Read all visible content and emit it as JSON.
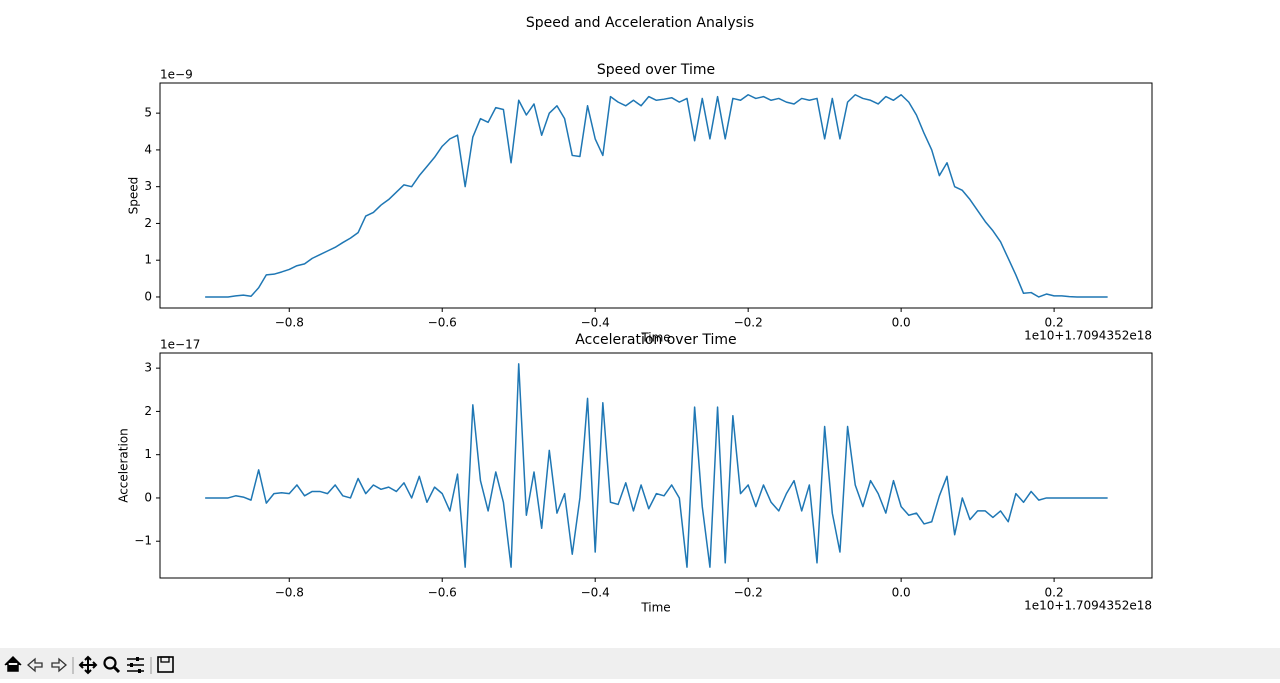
{
  "title": "Speed and Acceleration Analysis",
  "chart_data": [
    {
      "type": "line",
      "title": "Speed over Time",
      "x_label": "Time",
      "y_label": "Speed",
      "y_offset": "1e−9",
      "x_offset": "1e10+1.7094352e18",
      "color": "#1f77b4",
      "xlim": [
        -0.969,
        0.328
      ],
      "ylim": [
        -0.3,
        5.82
      ],
      "xticks": [
        {
          "value": -0.8,
          "label": "−0.8"
        },
        {
          "value": -0.6,
          "label": "−0.6"
        },
        {
          "value": -0.4,
          "label": "−0.4"
        },
        {
          "value": -0.2,
          "label": "−0.2"
        },
        {
          "value": 0,
          "label": "0.0"
        },
        0.2
      ],
      "yticks": [
        0,
        1,
        2,
        3,
        4,
        5
      ],
      "x": [
        -0.91,
        -0.9,
        -0.89,
        -0.88,
        -0.87,
        -0.86,
        -0.85,
        -0.84,
        -0.83,
        -0.82,
        -0.81,
        -0.8,
        -0.79,
        -0.78,
        -0.77,
        -0.76,
        -0.75,
        -0.74,
        -0.73,
        -0.72,
        -0.71,
        -0.7,
        -0.69,
        -0.68,
        -0.67,
        -0.66,
        -0.65,
        -0.64,
        -0.63,
        -0.62,
        -0.61,
        -0.6,
        -0.59,
        -0.58,
        -0.57,
        -0.56,
        -0.55,
        -0.54,
        -0.53,
        -0.52,
        -0.51,
        -0.5,
        -0.49,
        -0.48,
        -0.47,
        -0.46,
        -0.45,
        -0.44,
        -0.43,
        -0.42,
        -0.41,
        -0.4,
        -0.39,
        -0.38,
        -0.37,
        -0.36,
        -0.35,
        -0.34,
        -0.33,
        -0.32,
        -0.31,
        -0.3,
        -0.29,
        -0.28,
        -0.27,
        -0.26,
        -0.25,
        -0.24,
        -0.23,
        -0.22,
        -0.21,
        -0.2,
        -0.19,
        -0.18,
        -0.17,
        -0.16,
        -0.15,
        -0.14,
        -0.13,
        -0.12,
        -0.11,
        -0.1,
        -0.09,
        -0.08,
        -0.07,
        -0.06,
        -0.05,
        -0.04,
        -0.03,
        -0.02,
        -0.01,
        0,
        0.01,
        0.02,
        0.03,
        0.04,
        0.05,
        0.06,
        0.07,
        0.08,
        0.09,
        0.1,
        0.11,
        0.12,
        0.13,
        0.14,
        0.15,
        0.16,
        0.17,
        0.18,
        0.19,
        0.2,
        0.21,
        0.22,
        0.23,
        0.24,
        0.25,
        0.26,
        0.27
      ],
      "values": [
        0,
        0,
        0,
        0,
        0.03,
        0.05,
        0.02,
        0.25,
        0.6,
        0.62,
        0.68,
        0.75,
        0.85,
        0.9,
        1.05,
        1.15,
        1.25,
        1.35,
        1.48,
        1.6,
        1.75,
        2.2,
        2.3,
        2.5,
        2.65,
        2.85,
        3.05,
        3.0,
        3.3,
        3.55,
        3.8,
        4.1,
        4.3,
        4.4,
        3.0,
        4.35,
        4.85,
        4.75,
        5.15,
        5.1,
        3.65,
        5.35,
        4.95,
        5.25,
        4.4,
        5.0,
        5.2,
        4.85,
        3.85,
        3.82,
        5.2,
        4.3,
        3.85,
        5.45,
        5.3,
        5.2,
        5.35,
        5.2,
        5.45,
        5.35,
        5.38,
        5.42,
        5.3,
        5.4,
        4.25,
        5.4,
        4.3,
        5.45,
        4.3,
        5.4,
        5.35,
        5.5,
        5.4,
        5.45,
        5.35,
        5.4,
        5.3,
        5.25,
        5.4,
        5.35,
        5.4,
        4.3,
        5.4,
        4.3,
        5.3,
        5.5,
        5.4,
        5.35,
        5.25,
        5.45,
        5.35,
        5.5,
        5.3,
        4.95,
        4.45,
        4.0,
        3.3,
        3.65,
        3.0,
        2.9,
        2.65,
        2.35,
        2.05,
        1.8,
        1.5,
        1.05,
        0.6,
        0.1,
        0.12,
        0.0,
        0.08,
        0.03,
        0.03,
        0.01,
        0,
        0,
        0,
        0,
        0
      ]
    },
    {
      "type": "line",
      "title": "Acceleration over Time",
      "x_label": "Time",
      "y_label": "Acceleration",
      "y_offset": "1e−17",
      "x_offset": "1e10+1.7094352e18",
      "color": "#1f77b4",
      "xlim": [
        -0.969,
        0.328
      ],
      "ylim": [
        -1.85,
        3.35
      ],
      "xticks": [
        {
          "value": -0.8,
          "label": "−0.8"
        },
        {
          "value": -0.6,
          "label": "−0.6"
        },
        {
          "value": -0.4,
          "label": "−0.4"
        },
        {
          "value": -0.2,
          "label": "−0.2"
        },
        {
          "value": 0,
          "label": "0.0"
        },
        0.2
      ],
      "yticks": [
        {
          "value": -1,
          "label": "−1"
        },
        0,
        1,
        2,
        3
      ],
      "x": [
        -0.91,
        -0.9,
        -0.89,
        -0.88,
        -0.87,
        -0.86,
        -0.85,
        -0.84,
        -0.83,
        -0.82,
        -0.81,
        -0.8,
        -0.79,
        -0.78,
        -0.77,
        -0.76,
        -0.75,
        -0.74,
        -0.73,
        -0.72,
        -0.71,
        -0.7,
        -0.69,
        -0.68,
        -0.67,
        -0.66,
        -0.65,
        -0.64,
        -0.63,
        -0.62,
        -0.61,
        -0.6,
        -0.59,
        -0.58,
        -0.57,
        -0.56,
        -0.55,
        -0.54,
        -0.53,
        -0.52,
        -0.51,
        -0.5,
        -0.49,
        -0.48,
        -0.47,
        -0.46,
        -0.45,
        -0.44,
        -0.43,
        -0.42,
        -0.41,
        -0.4,
        -0.39,
        -0.38,
        -0.37,
        -0.36,
        -0.35,
        -0.34,
        -0.33,
        -0.32,
        -0.31,
        -0.3,
        -0.29,
        -0.28,
        -0.27,
        -0.26,
        -0.25,
        -0.24,
        -0.23,
        -0.22,
        -0.21,
        -0.2,
        -0.19,
        -0.18,
        -0.17,
        -0.16,
        -0.15,
        -0.14,
        -0.13,
        -0.12,
        -0.11,
        -0.1,
        -0.09,
        -0.08,
        -0.07,
        -0.06,
        -0.05,
        -0.04,
        -0.03,
        -0.02,
        -0.01,
        0,
        0.01,
        0.02,
        0.03,
        0.04,
        0.05,
        0.06,
        0.07,
        0.08,
        0.09,
        0.1,
        0.11,
        0.12,
        0.13,
        0.14,
        0.15,
        0.16,
        0.17,
        0.18,
        0.19,
        0.2,
        0.21,
        0.22,
        0.23,
        0.24,
        0.25,
        0.26,
        0.27
      ],
      "values": [
        0,
        0,
        0,
        0,
        0.05,
        0.02,
        -0.05,
        0.65,
        -0.12,
        0.1,
        0.12,
        0.1,
        0.3,
        0.05,
        0.15,
        0.15,
        0.1,
        0.3,
        0.05,
        0.0,
        0.45,
        0.1,
        0.3,
        0.2,
        0.25,
        0.15,
        0.35,
        0.0,
        0.5,
        -0.1,
        0.25,
        0.1,
        -0.3,
        0.55,
        -1.6,
        2.15,
        0.4,
        -0.3,
        0.6,
        -0.1,
        -1.6,
        3.1,
        -0.4,
        0.6,
        -0.7,
        1.1,
        -0.35,
        0.1,
        -1.3,
        0.0,
        2.3,
        -1.25,
        2.2,
        -0.1,
        -0.15,
        0.35,
        -0.3,
        0.3,
        -0.25,
        0.1,
        0.05,
        0.3,
        0.0,
        -1.6,
        2.1,
        -0.2,
        -1.6,
        2.1,
        -1.5,
        1.9,
        0.1,
        0.3,
        -0.2,
        0.3,
        -0.1,
        -0.3,
        0.1,
        0.4,
        -0.3,
        0.3,
        -1.5,
        1.65,
        -0.35,
        -1.25,
        1.65,
        0.3,
        -0.2,
        0.4,
        0.1,
        -0.35,
        0.4,
        -0.2,
        -0.4,
        -0.35,
        -0.6,
        -0.55,
        0.05,
        0.5,
        -0.85,
        0.0,
        -0.5,
        -0.3,
        -0.3,
        -0.45,
        -0.3,
        -0.55,
        0.1,
        -0.1,
        0.15,
        -0.05,
        0.0,
        0,
        0,
        0,
        0,
        0,
        0,
        0,
        0
      ]
    }
  ]
}
